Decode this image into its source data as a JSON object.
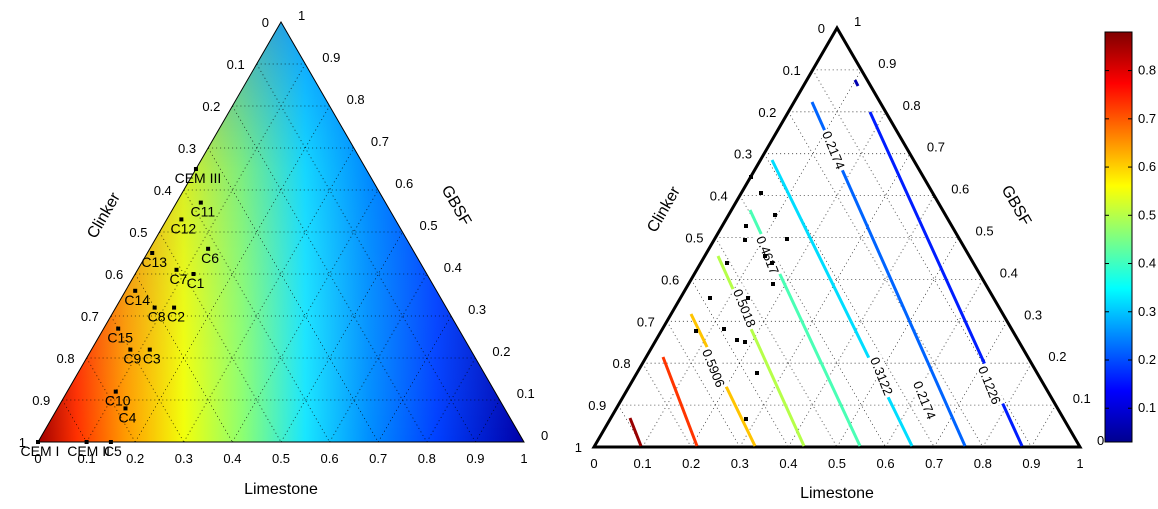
{
  "chart_data": [
    {
      "type": "ternary-filled",
      "axes": {
        "left": "Clinker",
        "right": "GBSF",
        "bottom": "Limestone"
      },
      "ticks": [
        "0",
        "0.1",
        "0.2",
        "0.3",
        "0.4",
        "0.5",
        "0.6",
        "0.7",
        "0.8",
        "0.9",
        "1"
      ],
      "colormap": "jet",
      "points": [
        {
          "label": "CEM III",
          "limestone": 0.0,
          "clinker": 0.35
        },
        {
          "label": "C11",
          "limestone": 0.05,
          "clinker": 0.38
        },
        {
          "label": "C6",
          "limestone": 0.12,
          "clinker": 0.42
        },
        {
          "label": "C12",
          "limestone": 0.03,
          "clinker": 0.44
        },
        {
          "label": "C1",
          "limestone": 0.12,
          "clinker": 0.48
        },
        {
          "label": "C7",
          "limestone": 0.08,
          "clinker": 0.51
        },
        {
          "label": "C13",
          "limestone": 0.01,
          "clinker": 0.54
        },
        {
          "label": "C2",
          "limestone": 0.12,
          "clinker": 0.56
        },
        {
          "label": "C14",
          "limestone": 0.02,
          "clinker": 0.62
        },
        {
          "label": "C8",
          "limestone": 0.08,
          "clinker": 0.6
        },
        {
          "label": "C3",
          "limestone": 0.12,
          "clinker": 0.66
        },
        {
          "label": "C15",
          "limestone": 0.03,
          "clinker": 0.7
        },
        {
          "label": "C9",
          "limestone": 0.08,
          "clinker": 0.7
        },
        {
          "label": "C10",
          "limestone": 0.1,
          "clinker": 0.78
        },
        {
          "label": "C4",
          "limestone": 0.14,
          "clinker": 0.78
        },
        {
          "label": "C5",
          "limestone": 0.15,
          "clinker": 0.85
        },
        {
          "label": "CEM I",
          "limestone": 0.0,
          "clinker": 1.0
        },
        {
          "label": "CEM II",
          "limestone": 0.1,
          "clinker": 0.9
        }
      ]
    },
    {
      "type": "ternary-contour",
      "axes": {
        "left": "Clinker",
        "right": "GBSF",
        "bottom": "Limestone"
      },
      "ticks": [
        "0",
        "0.1",
        "0.2",
        "0.3",
        "0.4",
        "0.5",
        "0.6",
        "0.7",
        "0.8",
        "0.9",
        "1"
      ],
      "colorbar": {
        "min": 0.03,
        "max": 0.88,
        "ticks": [
          "0.1",
          "0.2",
          "0.3",
          "0.4",
          "0.5",
          "0.6",
          "0.7",
          "0.8"
        ]
      },
      "contours": [
        {
          "value": 0.05,
          "clinker": [
            0.82,
            0.95
          ]
        },
        {
          "value": 0.1226,
          "clinker": [
            0.76,
            1.0
          ]
        },
        {
          "value": 0.2174,
          "clinker": [
            0.87,
            1.0
          ]
        },
        {
          "value": 0.2174,
          "clinker": [
            0.18,
            0.35
          ]
        },
        {
          "value": 0.2174,
          "clinker": [
            0.35,
            1.0
          ]
        },
        {
          "value": 0.3122,
          "clinker": [
            0.24,
            1.0
          ]
        },
        {
          "value": 0.406,
          "clinker": [
            0.4,
            1.0
          ]
        },
        {
          "value": 0.4617,
          "clinker": [
            0.44,
            0.48
          ]
        },
        {
          "value": 0.5018,
          "clinker": [
            0.52,
            0.68
          ]
        },
        {
          "value": 0.54,
          "clinker": [
            0.7,
            1.0
          ]
        },
        {
          "value": 0.5906,
          "clinker": [
            0.7,
            1.0
          ]
        },
        {
          "value": 0.72,
          "clinker": [
            0.8,
            1.0
          ]
        },
        {
          "value": 0.85,
          "clinker": [
            0.9,
            1.0
          ]
        }
      ],
      "contour_labels": [
        "0.2174",
        "0.4617",
        "0.5018",
        "0.5906",
        "0.3122",
        "0.2174",
        "0.1226"
      ],
      "points_count": 15
    }
  ]
}
